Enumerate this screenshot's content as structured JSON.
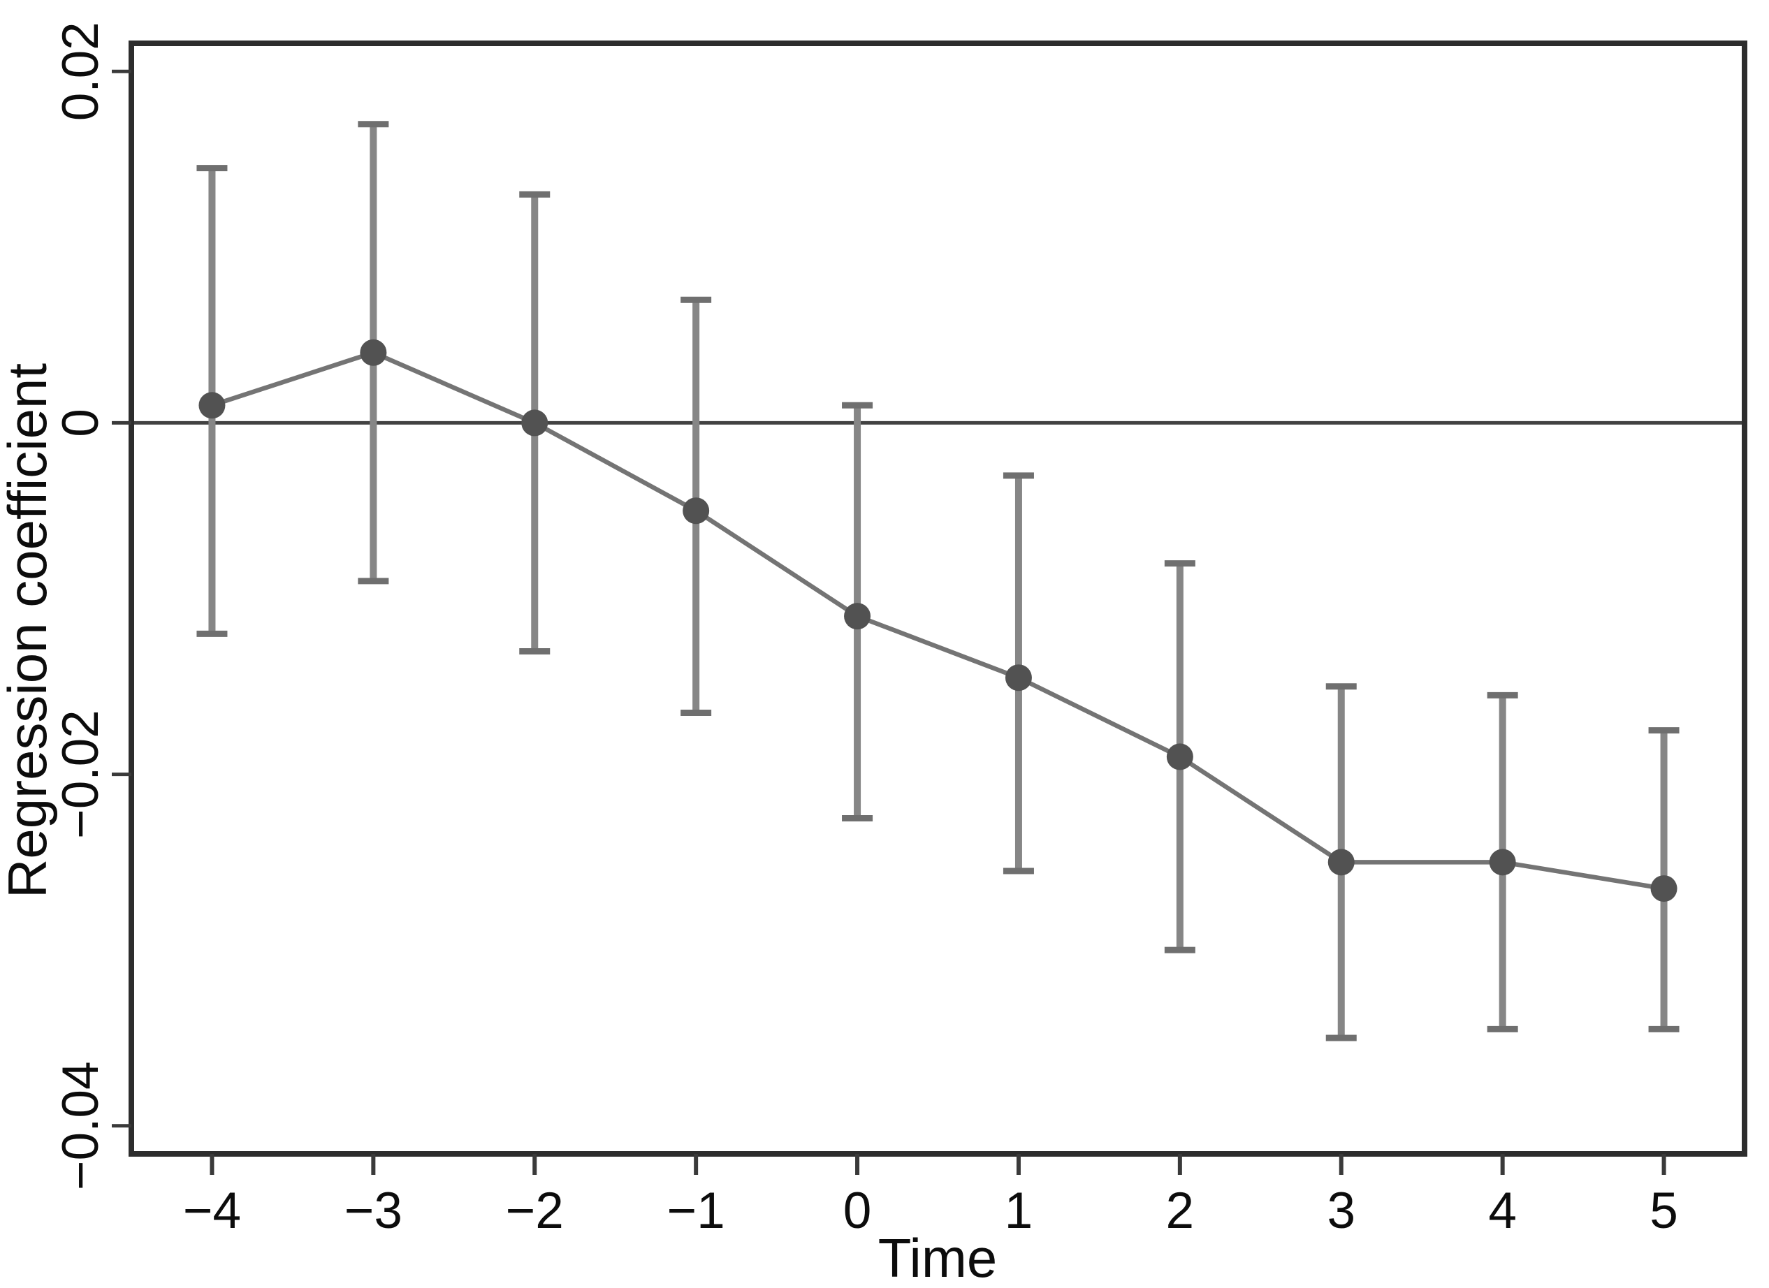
{
  "figure": {
    "background": "#ffffff"
  },
  "chart_data": {
    "type": "line",
    "title": "",
    "xlabel": "Time",
    "ylabel": "Regression coefficient",
    "x": [
      -4,
      -3,
      -2,
      -1,
      0,
      1,
      2,
      3,
      4,
      5
    ],
    "series": [
      {
        "name": "Regression coefficient",
        "values": [
          0.001,
          0.004,
          0.0,
          -0.005,
          -0.011,
          -0.0145,
          -0.019,
          -0.025,
          -0.025,
          -0.0265
        ],
        "ci_upper": [
          0.0145,
          0.017,
          0.013,
          0.007,
          0.001,
          -0.003,
          -0.008,
          -0.015,
          -0.0155,
          -0.0175
        ],
        "ci_lower": [
          -0.012,
          -0.009,
          -0.013,
          -0.0165,
          -0.0225,
          -0.0255,
          -0.03,
          -0.035,
          -0.0345,
          -0.0345
        ]
      }
    ],
    "x_tick_labels": [
      "−4",
      "−3",
      "−2",
      "−1",
      "0",
      "1",
      "2",
      "3",
      "4",
      "5"
    ],
    "y_ticks": [
      0.02,
      0,
      -0.02,
      -0.04
    ],
    "y_tick_labels": [
      "0.02",
      "0",
      "−0.02",
      "−0.04"
    ],
    "xlim": [
      -4.5,
      5.5
    ],
    "ylim": [
      -0.0416,
      0.0216
    ],
    "grid": false,
    "zero_line": true,
    "legend": null,
    "marker": "circle",
    "error_bars": true,
    "colors": {
      "marker": "#525252",
      "error_bar": "#868686",
      "error_cap": "#6f6f6f",
      "line": "#747474",
      "zero_line": "#424242",
      "frame": "#2d2d2d",
      "tick": "#3a3a3a",
      "text": "#0c0c0c"
    }
  }
}
